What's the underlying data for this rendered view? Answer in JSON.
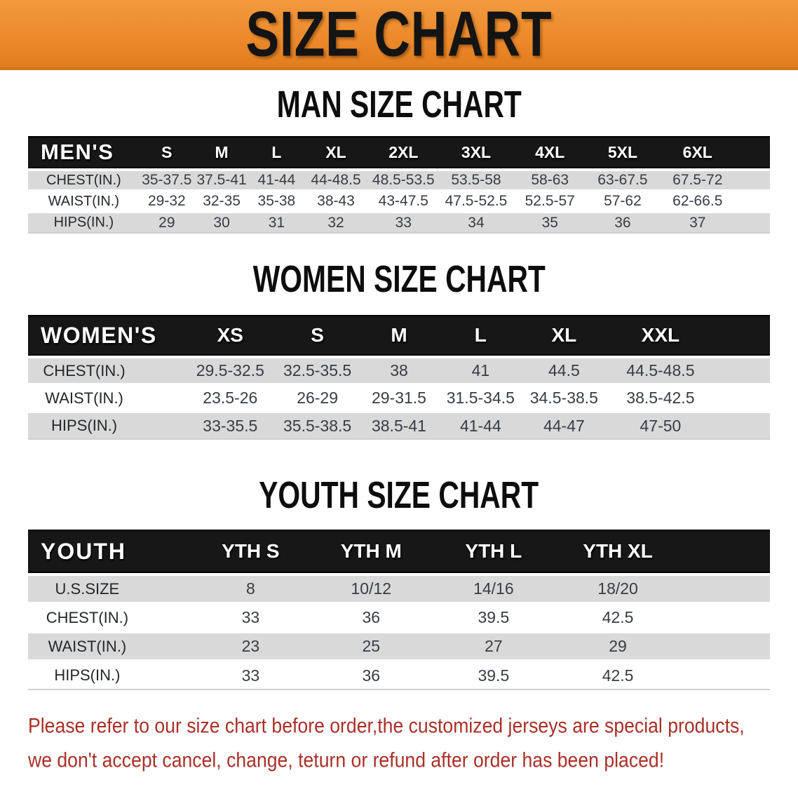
{
  "banner": {
    "title": "SIZE CHART"
  },
  "colors": {
    "banner_bg": "#ec8a2c",
    "table_header_bg": "#171717",
    "row_stripe": "#d9d9d9",
    "note_text": "#a93028"
  },
  "sections": [
    {
      "heading": "MAN SIZE CHART",
      "table": {
        "header": [
          "MEN'S",
          "S",
          "M",
          "L",
          "XL",
          "2XL",
          "3XL",
          "4XL",
          "5XL",
          "6XL"
        ],
        "rows": [
          [
            "CHEST(IN.)",
            "35-37.5",
            "37.5-41",
            "41-44",
            "44-48.5",
            "48.5-53.5",
            "53.5-58",
            "58-63",
            "63-67.5",
            "67.5-72"
          ],
          [
            "WAIST(IN.)",
            "29-32",
            "32-35",
            "35-38",
            "38-43",
            "43-47.5",
            "47.5-52.5",
            "52.5-57",
            "57-62",
            "62-66.5"
          ],
          [
            "HIPS(IN.)",
            "29",
            "30",
            "31",
            "32",
            "33",
            "34",
            "35",
            "36",
            "37"
          ]
        ]
      }
    },
    {
      "heading": "WOMEN SIZE CHART",
      "table": {
        "header": [
          "WOMEN'S",
          "XS",
          "S",
          "M",
          "L",
          "XL",
          "XXL"
        ],
        "rows": [
          [
            "CHEST(IN.)",
            "29.5-32.5",
            "32.5-35.5",
            "38",
            "41",
            "44.5",
            "44.5-48.5"
          ],
          [
            "WAIST(IN.)",
            "23.5-26",
            "26-29",
            "29-31.5",
            "31.5-34.5",
            "34.5-38.5",
            "38.5-42.5"
          ],
          [
            "HIPS(IN.)",
            "33-35.5",
            "35.5-38.5",
            "38.5-41",
            "41-44",
            "44-47",
            "47-50"
          ]
        ]
      }
    },
    {
      "heading": "YOUTH SIZE CHART",
      "table": {
        "header": [
          "YOUTH",
          "YTH S",
          "YTH M",
          "YTH L",
          "YTH XL"
        ],
        "rows": [
          [
            "U.S.SIZE",
            "8",
            "10/12",
            "14/16",
            "18/20"
          ],
          [
            "CHEST(IN.)",
            "33",
            "36",
            "39.5",
            "42.5"
          ],
          [
            "WAIST(IN.)",
            "23",
            "25",
            "27",
            "29"
          ],
          [
            "HIPS(IN.)",
            "33",
            "36",
            "39.5",
            "42.5"
          ]
        ]
      }
    }
  ],
  "footnote": {
    "lines": [
      "Please refer to our size chart before order,the customized jerseys are special products,",
      "we don't accept cancel, change, teturn or refund after order has been placed!"
    ]
  }
}
